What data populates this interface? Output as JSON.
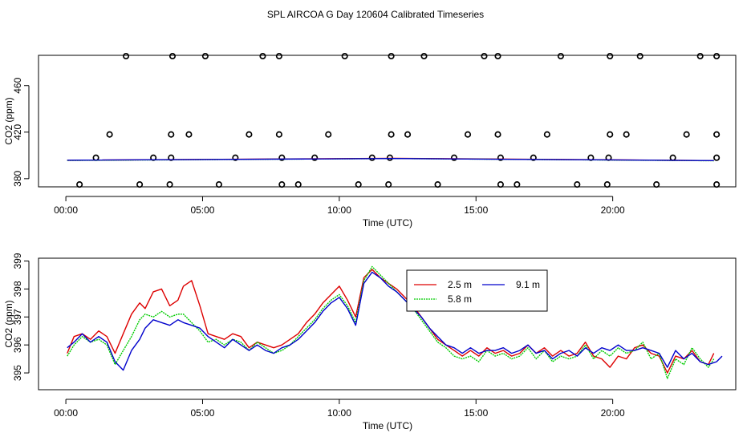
{
  "title": "SPL AIRCOA G  Day 120604  Calibrated Timeseries",
  "chart_data": [
    {
      "type": "line",
      "xlabel": "Time (UTC)",
      "ylabel": "CO2 (ppm)",
      "xlim": [
        -1,
        24.5
      ],
      "ylim": [
        373,
        486
      ],
      "xticks": [
        0,
        5,
        10,
        15,
        20
      ],
      "xtick_labels": [
        "00:00",
        "05:00",
        "10:00",
        "15:00",
        "20:00"
      ],
      "yticks": [
        380,
        420,
        460
      ],
      "ytick_labels": [
        "380",
        "420",
        "460"
      ],
      "series": [
        {
          "name": "2.5 m",
          "color": "#dd0000",
          "x": [
            0.05,
            12,
            23.7
          ],
          "y": [
            395.8,
            397.5,
            395.5
          ]
        },
        {
          "name": "5.8 m",
          "color": "#00cc00",
          "x": [
            0.05,
            12,
            23.7
          ],
          "y": [
            395.7,
            397.3,
            395.4
          ]
        },
        {
          "name": "9.1 m",
          "color": "#0000cc",
          "x": [
            0.05,
            12,
            23.7
          ],
          "y": [
            395.9,
            397.3,
            395.5
          ]
        }
      ],
      "points": {
        "marker": "open-circle",
        "x": [
          0.5,
          2.7,
          3.8,
          5.6,
          7.9,
          8.5,
          10.7,
          11.8,
          13.6,
          15.9,
          16.5,
          18.7,
          19.8,
          21.6,
          23.8,
          1.1,
          3.2,
          3.85,
          6.2,
          7.9,
          9.1,
          11.2,
          11.85,
          14.2,
          15.9,
          17.1,
          19.2,
          19.85,
          22.2,
          23.8,
          1.6,
          3.85,
          4.5,
          6.7,
          7.8,
          9.6,
          11.9,
          12.5,
          14.7,
          15.8,
          17.6,
          19.9,
          20.5,
          22.7,
          23.8,
          2.2,
          3.9,
          5.1,
          7.2,
          7.8,
          10.2,
          11.9,
          13.1,
          15.3,
          15.8,
          18.1,
          19.9,
          21.0,
          23.2,
          23.8
        ],
        "y": [
          375,
          375,
          375,
          375,
          375,
          375,
          375,
          375,
          375,
          375,
          375,
          375,
          375,
          375,
          375,
          398,
          398,
          398,
          398,
          398,
          398,
          398,
          398,
          398,
          398,
          398,
          398,
          398,
          398,
          398,
          418,
          418,
          418,
          418,
          418,
          418,
          418,
          418,
          418,
          418,
          418,
          418,
          418,
          418,
          418,
          486,
          486,
          486,
          486,
          486,
          486,
          486,
          486,
          486,
          486,
          486,
          486,
          486,
          486,
          486
        ]
      }
    },
    {
      "type": "line",
      "xlabel": "Time (UTC)",
      "ylabel": "CO2 (ppm)",
      "xlim": [
        -1,
        24.5
      ],
      "ylim": [
        394.4,
        399.1
      ],
      "xticks": [
        0,
        5,
        10,
        15,
        20
      ],
      "xtick_labels": [
        "00:00",
        "05:00",
        "10:00",
        "15:00",
        "20:00"
      ],
      "yticks": [
        395,
        396,
        397,
        398,
        399
      ],
      "ytick_labels": [
        "395",
        "396",
        "397",
        "398",
        "399"
      ],
      "legend": {
        "position": "top-center",
        "entries": [
          "2.5 m",
          "5.8 m",
          "9.1 m"
        ]
      },
      "series": [
        {
          "name": "2.5 m",
          "color": "#dd0000",
          "x": [
            0.05,
            0.3,
            0.6,
            0.9,
            1.2,
            1.5,
            1.8,
            2.1,
            2.4,
            2.7,
            2.9,
            3.2,
            3.5,
            3.8,
            4.1,
            4.3,
            4.6,
            4.9,
            5.2,
            5.5,
            5.8,
            6.1,
            6.4,
            6.7,
            7.0,
            7.3,
            7.6,
            7.9,
            8.2,
            8.5,
            8.8,
            9.1,
            9.4,
            9.7,
            10.0,
            10.3,
            10.6,
            10.9,
            11.2,
            11.5,
            11.8,
            12.1,
            12.4,
            12.7,
            13.0,
            13.3,
            13.6,
            13.9,
            14.2,
            14.5,
            14.8,
            15.1,
            15.4,
            15.7,
            16.0,
            16.3,
            16.6,
            16.9,
            17.2,
            17.5,
            17.8,
            18.1,
            18.4,
            18.7,
            19.0,
            19.3,
            19.6,
            19.9,
            20.2,
            20.5,
            20.8,
            21.1,
            21.4,
            21.7,
            22.0,
            22.3,
            22.6,
            22.9,
            23.2,
            23.5,
            23.7
          ],
          "y": [
            395.7,
            396.3,
            396.4,
            396.2,
            396.5,
            396.3,
            395.7,
            396.4,
            397.1,
            397.5,
            397.3,
            397.9,
            398.0,
            397.4,
            397.6,
            398.1,
            398.3,
            397.4,
            396.4,
            396.3,
            396.2,
            396.4,
            396.3,
            395.9,
            396.1,
            396.0,
            395.9,
            396.0,
            396.2,
            396.4,
            396.8,
            397.1,
            397.5,
            397.8,
            398.1,
            397.6,
            397.0,
            398.4,
            398.7,
            398.4,
            398.2,
            398.0,
            397.7,
            397.4,
            397.0,
            396.6,
            396.2,
            396.0,
            395.8,
            395.6,
            395.8,
            395.6,
            395.9,
            395.7,
            395.8,
            395.6,
            395.7,
            396.0,
            395.7,
            395.9,
            395.6,
            395.8,
            395.6,
            395.7,
            396.1,
            395.6,
            395.5,
            395.2,
            395.6,
            395.5,
            395.9,
            396.0,
            395.7,
            395.6,
            395.0,
            395.6,
            395.5,
            395.8,
            395.4,
            395.3,
            395.7
          ]
        },
        {
          "name": "5.8 m",
          "color": "#00cc00",
          "x": [
            0.05,
            0.3,
            0.6,
            0.9,
            1.2,
            1.5,
            1.8,
            2.1,
            2.4,
            2.7,
            2.9,
            3.2,
            3.5,
            3.8,
            4.1,
            4.3,
            4.6,
            4.9,
            5.2,
            5.5,
            5.8,
            6.1,
            6.4,
            6.7,
            7.0,
            7.3,
            7.6,
            7.9,
            8.2,
            8.5,
            8.8,
            9.1,
            9.4,
            9.7,
            10.0,
            10.3,
            10.6,
            10.9,
            11.2,
            11.5,
            11.8,
            12.1,
            12.4,
            12.7,
            13.0,
            13.3,
            13.6,
            13.9,
            14.2,
            14.5,
            14.8,
            15.1,
            15.4,
            15.7,
            16.0,
            16.3,
            16.6,
            16.9,
            17.2,
            17.5,
            17.8,
            18.1,
            18.4,
            18.7,
            19.0,
            19.3,
            19.6,
            19.9,
            20.2,
            20.5,
            20.8,
            21.1,
            21.4,
            21.7,
            22.0,
            22.3,
            22.6,
            22.9,
            23.2,
            23.5,
            23.7
          ],
          "y": [
            395.6,
            396.0,
            396.3,
            396.1,
            396.2,
            396.0,
            395.3,
            395.8,
            396.3,
            396.9,
            397.1,
            397.0,
            397.2,
            397.0,
            397.1,
            397.1,
            396.8,
            396.5,
            396.1,
            396.2,
            396.0,
            396.2,
            396.1,
            395.8,
            396.1,
            395.9,
            395.7,
            395.8,
            396.0,
            396.3,
            396.6,
            396.9,
            397.3,
            397.6,
            397.8,
            397.4,
            396.8,
            398.3,
            398.8,
            398.5,
            398.2,
            397.9,
            397.6,
            397.3,
            396.9,
            396.5,
            396.1,
            395.9,
            395.6,
            395.5,
            395.6,
            395.4,
            395.8,
            395.6,
            395.7,
            395.5,
            395.6,
            395.9,
            395.5,
            395.8,
            395.4,
            395.6,
            395.5,
            395.6,
            396.0,
            395.5,
            395.8,
            395.6,
            395.9,
            395.7,
            395.8,
            396.1,
            395.5,
            395.7,
            394.8,
            395.5,
            395.3,
            395.9,
            395.5,
            395.2,
            395.5
          ]
        },
        {
          "name": "9.1 m",
          "color": "#0000cc",
          "x": [
            0.05,
            0.3,
            0.6,
            0.9,
            1.2,
            1.5,
            1.8,
            2.1,
            2.4,
            2.7,
            2.9,
            3.2,
            3.5,
            3.8,
            4.1,
            4.3,
            4.6,
            4.9,
            5.2,
            5.5,
            5.8,
            6.1,
            6.4,
            6.7,
            7.0,
            7.3,
            7.6,
            7.9,
            8.2,
            8.5,
            8.8,
            9.1,
            9.4,
            9.7,
            10.0,
            10.3,
            10.6,
            10.9,
            11.2,
            11.5,
            11.8,
            12.1,
            12.4,
            12.7,
            13.0,
            13.3,
            13.6,
            13.9,
            14.2,
            14.5,
            14.8,
            15.1,
            15.4,
            15.7,
            16.0,
            16.3,
            16.6,
            16.9,
            17.2,
            17.5,
            17.8,
            18.1,
            18.4,
            18.7,
            19.0,
            19.3,
            19.6,
            19.9,
            20.2,
            20.5,
            20.8,
            21.1,
            21.4,
            21.7,
            22.0,
            22.3,
            22.6,
            22.9,
            23.2,
            23.5,
            23.8,
            24.0
          ],
          "y": [
            395.9,
            396.1,
            396.4,
            396.1,
            396.3,
            396.1,
            395.4,
            395.1,
            395.8,
            396.2,
            396.6,
            396.9,
            396.8,
            396.7,
            396.9,
            396.8,
            396.7,
            396.6,
            396.3,
            396.1,
            395.9,
            396.2,
            396.0,
            395.8,
            396.0,
            395.8,
            395.7,
            395.9,
            396.0,
            396.2,
            396.5,
            396.8,
            397.2,
            397.5,
            397.7,
            397.3,
            396.7,
            398.2,
            398.6,
            398.4,
            398.1,
            397.9,
            397.6,
            397.3,
            397.0,
            396.6,
            396.3,
            396.0,
            395.9,
            395.7,
            395.9,
            395.7,
            395.8,
            395.8,
            395.9,
            395.7,
            395.8,
            396.0,
            395.7,
            395.8,
            395.5,
            395.7,
            395.8,
            395.6,
            395.9,
            395.7,
            395.9,
            395.8,
            396.0,
            395.8,
            395.8,
            395.9,
            395.8,
            395.7,
            395.2,
            395.8,
            395.5,
            395.7,
            395.4,
            395.3,
            395.4,
            395.6
          ]
        }
      ]
    }
  ]
}
